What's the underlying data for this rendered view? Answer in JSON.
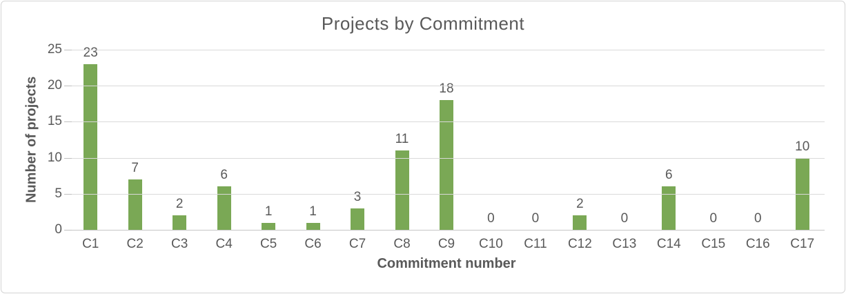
{
  "chart_data": {
    "type": "bar",
    "title": "Projects by Commitment",
    "xlabel": "Commitment number",
    "ylabel": "Number of projects",
    "categories": [
      "C1",
      "C2",
      "C3",
      "C4",
      "C5",
      "C6",
      "C7",
      "C8",
      "C9",
      "C10",
      "C11",
      "C12",
      "C13",
      "C14",
      "C15",
      "C16",
      "C17"
    ],
    "values": [
      23,
      7,
      2,
      6,
      1,
      1,
      3,
      11,
      18,
      0,
      0,
      2,
      0,
      6,
      0,
      0,
      10
    ],
    "ylim": [
      0,
      25
    ],
    "yticks": [
      0,
      5,
      10,
      15,
      20,
      25
    ],
    "grid": true,
    "legend": "none",
    "data_labels": true,
    "colors": {
      "bar": "#7aa855",
      "text": "#595959",
      "gridline": "#d9d9d9",
      "axis_line": "#c6c6c6",
      "frame_border": "#d4d4d4",
      "background": "#ffffff"
    }
  }
}
